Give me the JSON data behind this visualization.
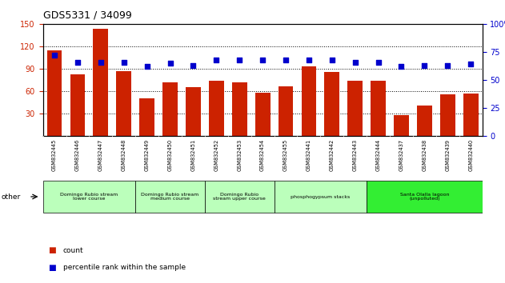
{
  "title": "GDS5331 / 34099",
  "samples": [
    "GSM832445",
    "GSM832446",
    "GSM832447",
    "GSM832448",
    "GSM832449",
    "GSM832450",
    "GSM832451",
    "GSM832452",
    "GSM832453",
    "GSM832454",
    "GSM832455",
    "GSM832441",
    "GSM832442",
    "GSM832443",
    "GSM832444",
    "GSM832437",
    "GSM832438",
    "GSM832439",
    "GSM832440"
  ],
  "counts": [
    115,
    83,
    144,
    87,
    50,
    72,
    65,
    74,
    72,
    58,
    66,
    93,
    86,
    74,
    74,
    28,
    41,
    56,
    57
  ],
  "percentiles": [
    72,
    66,
    66,
    66,
    62,
    65,
    63,
    68,
    68,
    68,
    68,
    68,
    68,
    66,
    66,
    62,
    63,
    63,
    64
  ],
  "bar_color": "#cc2200",
  "dot_color": "#0000cc",
  "ylim_left": [
    0,
    150
  ],
  "ylim_right": [
    0,
    100
  ],
  "yticks_left": [
    30,
    60,
    90,
    120,
    150
  ],
  "yticks_right": [
    0,
    25,
    50,
    75,
    100
  ],
  "groups": [
    {
      "label": "Domingo Rubio stream\nlower course",
      "start": 0,
      "end": 3,
      "color": "#bbffbb"
    },
    {
      "label": "Domingo Rubio stream\nmedium course",
      "start": 4,
      "end": 6,
      "color": "#bbffbb"
    },
    {
      "label": "Domingo Rubio\nstream upper course",
      "start": 7,
      "end": 9,
      "color": "#bbffbb"
    },
    {
      "label": "phosphogypsum stacks",
      "start": 10,
      "end": 13,
      "color": "#bbffbb"
    },
    {
      "label": "Santa Olalla lagoon\n(unpolluted)",
      "start": 14,
      "end": 18,
      "color": "#33ee33"
    }
  ],
  "xtick_bg_color": "#cccccc",
  "legend_count_label": "count",
  "legend_pct_label": "percentile rank within the sample"
}
